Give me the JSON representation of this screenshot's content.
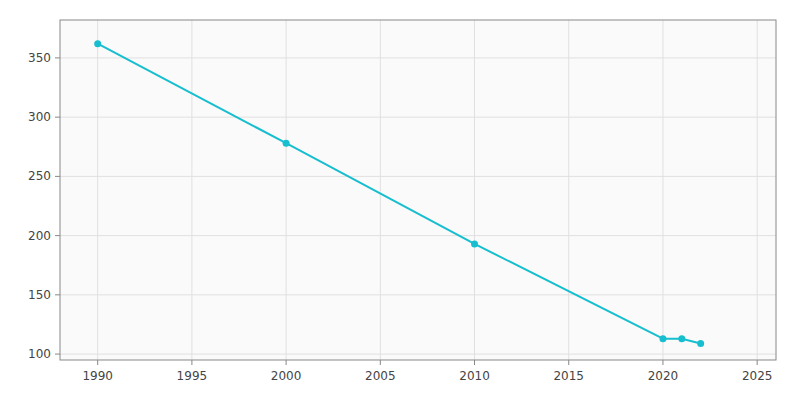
{
  "chart_data": {
    "type": "line",
    "x": [
      1990,
      2000,
      2010,
      2020,
      2021,
      2022
    ],
    "values": [
      362,
      278,
      193,
      113,
      113,
      109
    ],
    "color": "#17BECF",
    "marker": "circle",
    "xlim": [
      1988,
      2026
    ],
    "ylim": [
      95,
      382
    ],
    "xticks": [
      1990,
      1995,
      2000,
      2005,
      2010,
      2015,
      2020,
      2025
    ],
    "yticks": [
      100,
      150,
      200,
      250,
      300,
      350
    ],
    "grid": true
  }
}
